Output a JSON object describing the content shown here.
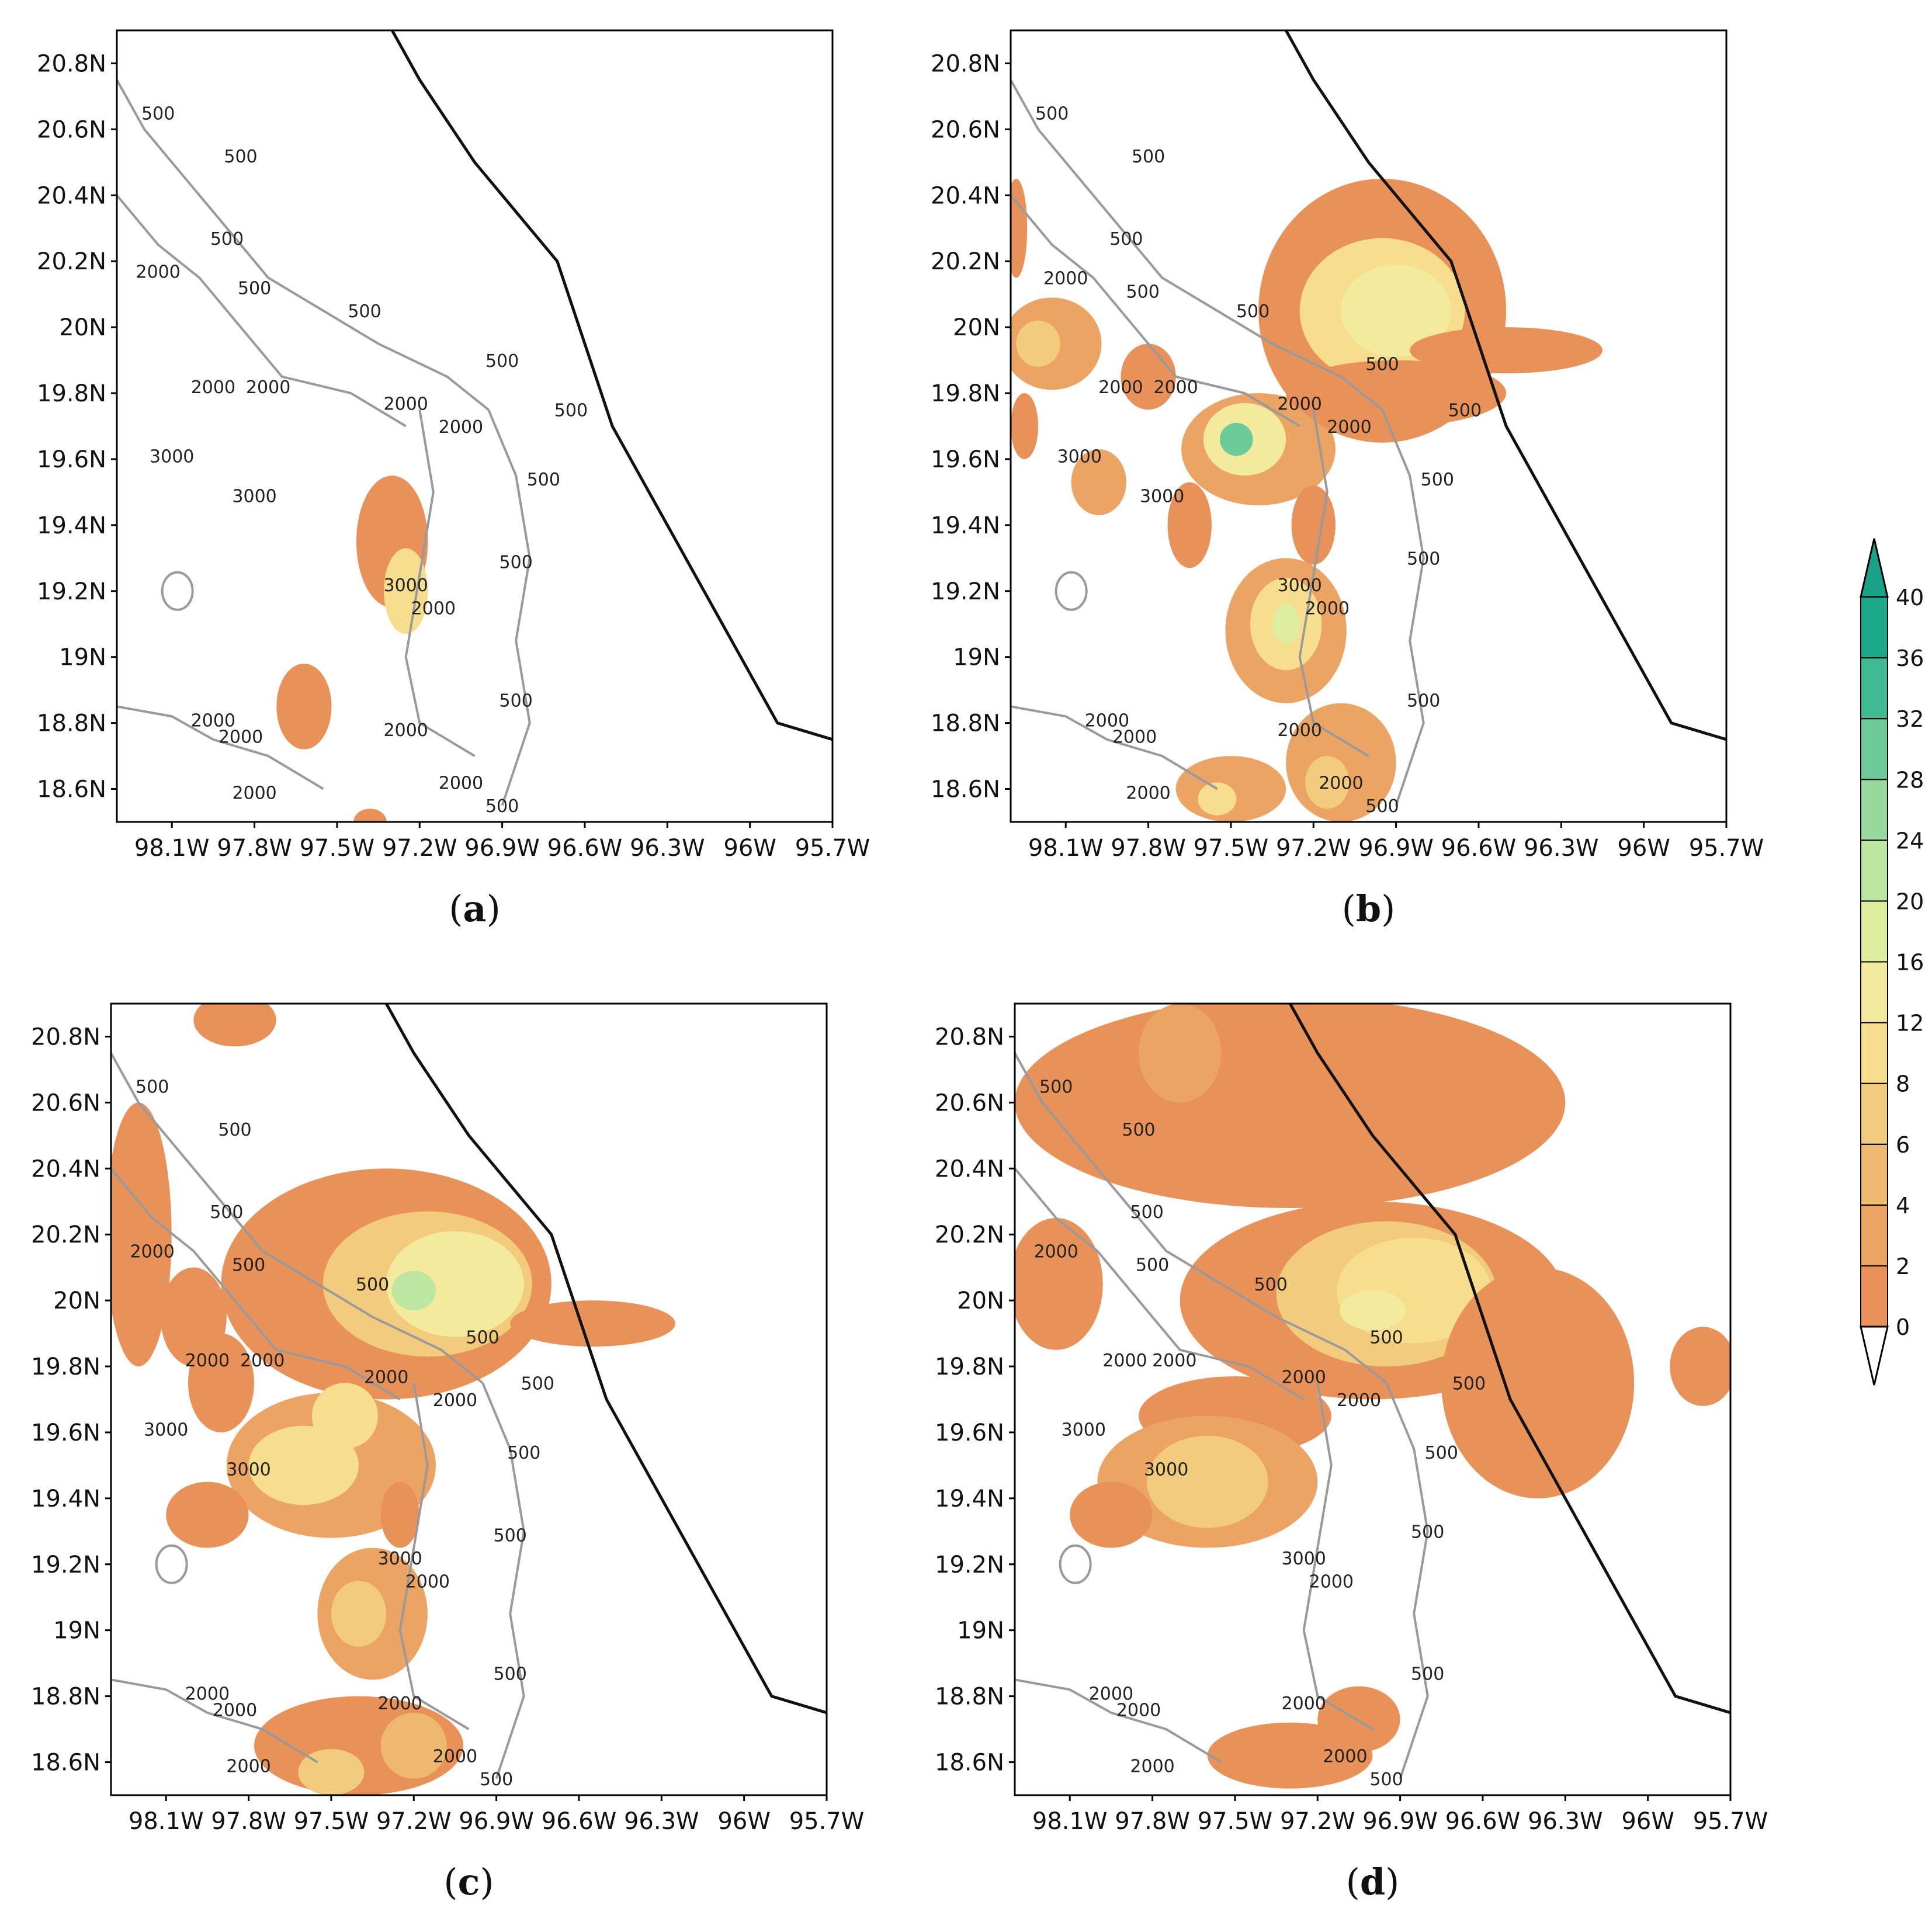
{
  "panels": [
    {
      "id": "a",
      "label": "(a)",
      "caption_letter": "a"
    },
    {
      "id": "b",
      "label": "(b)",
      "caption_letter": "b"
    },
    {
      "id": "c",
      "label": "(c)",
      "caption_letter": "c"
    },
    {
      "id": "d",
      "label": "(d)",
      "caption_letter": "d"
    }
  ],
  "lat_ticks": [
    "20.8N",
    "20.6N",
    "20.4N",
    "20.2N",
    "20N",
    "19.8N",
    "19.6N",
    "19.4N",
    "19.2N",
    "19N",
    "18.8N",
    "18.6N"
  ],
  "lon_ticks": [
    "98.1W",
    "97.8W",
    "97.5W",
    "97.2W",
    "96.9W",
    "96.6W",
    "96.3W",
    "96W",
    "95.7W"
  ],
  "map_extent": {
    "lon_min": -98.3,
    "lon_max": -95.7,
    "lat_min": 18.5,
    "lat_max": 20.9
  },
  "colorbar": {
    "levels": [
      "0",
      "2",
      "4",
      "6",
      "8",
      "12",
      "16",
      "20",
      "24",
      "28",
      "32",
      "36",
      "40"
    ],
    "colors": [
      "#e8925a",
      "#eba464",
      "#eeb86e",
      "#f2cb7c",
      "#f6de8e",
      "#f4ea9e",
      "#ddeea0",
      "#bde6a0",
      "#97d99c",
      "#6ccb98",
      "#3fba92",
      "#1ea88a"
    ],
    "under_color": "#ffffff",
    "over_color": "#18a386"
  },
  "colors": {
    "coast": "#111111",
    "contour": "#9a9a9a",
    "frame": "#000000"
  },
  "contour_labels": {
    "a": [
      {
        "t": "500",
        "lon": -98.15,
        "lat": 20.63
      },
      {
        "t": "500",
        "lon": -97.85,
        "lat": 20.5
      },
      {
        "t": "500",
        "lon": -97.9,
        "lat": 20.25
      },
      {
        "t": "2000",
        "lon": -98.15,
        "lat": 20.15
      },
      {
        "t": "500",
        "lon": -97.8,
        "lat": 20.1
      },
      {
        "t": "500",
        "lon": -97.4,
        "lat": 20.03
      },
      {
        "t": "500",
        "lon": -96.9,
        "lat": 19.88
      },
      {
        "t": "2000",
        "lon": -97.95,
        "lat": 19.8
      },
      {
        "t": "2000",
        "lon": -97.75,
        "lat": 19.8
      },
      {
        "t": "2000",
        "lon": -97.25,
        "lat": 19.75
      },
      {
        "t": "2000",
        "lon": -97.05,
        "lat": 19.68
      },
      {
        "t": "500",
        "lon": -96.65,
        "lat": 19.73
      },
      {
        "t": "3000",
        "lon": -98.1,
        "lat": 19.59
      },
      {
        "t": "3000",
        "lon": -97.8,
        "lat": 19.47
      },
      {
        "t": "500",
        "lon": -96.75,
        "lat": 19.52
      },
      {
        "t": "500",
        "lon": -96.85,
        "lat": 19.27
      },
      {
        "t": "3000",
        "lon": -97.25,
        "lat": 19.2
      },
      {
        "t": "2000",
        "lon": -97.15,
        "lat": 19.13
      },
      {
        "t": "500",
        "lon": -96.85,
        "lat": 18.85
      },
      {
        "t": "2000",
        "lon": -97.95,
        "lat": 18.79
      },
      {
        "t": "2000",
        "lon": -97.85,
        "lat": 18.74
      },
      {
        "t": "2000",
        "lon": -97.25,
        "lat": 18.76
      },
      {
        "t": "2000",
        "lon": -97.05,
        "lat": 18.6
      },
      {
        "t": "2000",
        "lon": -97.8,
        "lat": 18.57
      },
      {
        "t": "500",
        "lon": -96.9,
        "lat": 18.53
      }
    ],
    "b": [
      {
        "t": "500",
        "lon": -98.15,
        "lat": 20.63
      },
      {
        "t": "500",
        "lon": -97.8,
        "lat": 20.5
      },
      {
        "t": "500",
        "lon": -97.88,
        "lat": 20.25
      },
      {
        "t": "2000",
        "lon": -98.1,
        "lat": 20.13
      },
      {
        "t": "500",
        "lon": -97.82,
        "lat": 20.09
      },
      {
        "t": "500",
        "lon": -97.42,
        "lat": 20.03
      },
      {
        "t": "500",
        "lon": -96.95,
        "lat": 19.87
      },
      {
        "t": "2000",
        "lon": -97.9,
        "lat": 19.8
      },
      {
        "t": "2000",
        "lon": -97.7,
        "lat": 19.8
      },
      {
        "t": "2000",
        "lon": -97.25,
        "lat": 19.75
      },
      {
        "t": "2000",
        "lon": -97.07,
        "lat": 19.68
      },
      {
        "t": "500",
        "lon": -96.65,
        "lat": 19.73
      },
      {
        "t": "3000",
        "lon": -98.05,
        "lat": 19.59
      },
      {
        "t": "3000",
        "lon": -97.75,
        "lat": 19.47
      },
      {
        "t": "500",
        "lon": -96.75,
        "lat": 19.52
      },
      {
        "t": "500",
        "lon": -96.8,
        "lat": 19.28
      },
      {
        "t": "3000",
        "lon": -97.25,
        "lat": 19.2
      },
      {
        "t": "2000",
        "lon": -97.15,
        "lat": 19.13
      },
      {
        "t": "500",
        "lon": -96.8,
        "lat": 18.85
      },
      {
        "t": "2000",
        "lon": -97.95,
        "lat": 18.79
      },
      {
        "t": "2000",
        "lon": -97.85,
        "lat": 18.74
      },
      {
        "t": "2000",
        "lon": -97.25,
        "lat": 18.76
      },
      {
        "t": "2000",
        "lon": -97.1,
        "lat": 18.6
      },
      {
        "t": "2000",
        "lon": -97.8,
        "lat": 18.57
      },
      {
        "t": "500",
        "lon": -96.95,
        "lat": 18.53
      }
    ],
    "c": [
      {
        "t": "500",
        "lon": -98.15,
        "lat": 20.63
      },
      {
        "t": "500",
        "lon": -97.85,
        "lat": 20.5
      },
      {
        "t": "500",
        "lon": -97.88,
        "lat": 20.25
      },
      {
        "t": "2000",
        "lon": -98.15,
        "lat": 20.13
      },
      {
        "t": "500",
        "lon": -97.8,
        "lat": 20.09
      },
      {
        "t": "500",
        "lon": -97.35,
        "lat": 20.03
      },
      {
        "t": "500",
        "lon": -96.95,
        "lat": 19.87
      },
      {
        "t": "2000",
        "lon": -97.95,
        "lat": 19.8
      },
      {
        "t": "2000",
        "lon": -97.75,
        "lat": 19.8
      },
      {
        "t": "2000",
        "lon": -97.3,
        "lat": 19.75
      },
      {
        "t": "2000",
        "lon": -97.05,
        "lat": 19.68
      },
      {
        "t": "500",
        "lon": -96.75,
        "lat": 19.73
      },
      {
        "t": "3000",
        "lon": -98.1,
        "lat": 19.59
      },
      {
        "t": "3000",
        "lon": -97.8,
        "lat": 19.47
      },
      {
        "t": "500",
        "lon": -96.8,
        "lat": 19.52
      },
      {
        "t": "500",
        "lon": -96.85,
        "lat": 19.27
      },
      {
        "t": "3000",
        "lon": -97.25,
        "lat": 19.2
      },
      {
        "t": "2000",
        "lon": -97.15,
        "lat": 19.13
      },
      {
        "t": "500",
        "lon": -96.85,
        "lat": 18.85
      },
      {
        "t": "2000",
        "lon": -97.95,
        "lat": 18.79
      },
      {
        "t": "2000",
        "lon": -97.85,
        "lat": 18.74
      },
      {
        "t": "2000",
        "lon": -97.25,
        "lat": 18.76
      },
      {
        "t": "2000",
        "lon": -97.05,
        "lat": 18.6
      },
      {
        "t": "2000",
        "lon": -97.8,
        "lat": 18.57
      },
      {
        "t": "500",
        "lon": -96.9,
        "lat": 18.53
      }
    ],
    "d": [
      {
        "t": "500",
        "lon": -98.15,
        "lat": 20.63
      },
      {
        "t": "500",
        "lon": -97.85,
        "lat": 20.5
      },
      {
        "t": "500",
        "lon": -97.82,
        "lat": 20.25
      },
      {
        "t": "2000",
        "lon": -98.15,
        "lat": 20.13
      },
      {
        "t": "500",
        "lon": -97.8,
        "lat": 20.09
      },
      {
        "t": "500",
        "lon": -97.37,
        "lat": 20.03
      },
      {
        "t": "500",
        "lon": -96.95,
        "lat": 19.87
      },
      {
        "t": "2000",
        "lon": -97.9,
        "lat": 19.8
      },
      {
        "t": "2000",
        "lon": -97.72,
        "lat": 19.8
      },
      {
        "t": "2000",
        "lon": -97.25,
        "lat": 19.75
      },
      {
        "t": "2000",
        "lon": -97.05,
        "lat": 19.68
      },
      {
        "t": "500",
        "lon": -96.65,
        "lat": 19.73
      },
      {
        "t": "3000",
        "lon": -98.05,
        "lat": 19.59
      },
      {
        "t": "3000",
        "lon": -97.75,
        "lat": 19.47
      },
      {
        "t": "500",
        "lon": -96.75,
        "lat": 19.52
      },
      {
        "t": "500",
        "lon": -96.8,
        "lat": 19.28
      },
      {
        "t": "3000",
        "lon": -97.25,
        "lat": 19.2
      },
      {
        "t": "2000",
        "lon": -97.15,
        "lat": 19.13
      },
      {
        "t": "500",
        "lon": -96.8,
        "lat": 18.85
      },
      {
        "t": "2000",
        "lon": -97.95,
        "lat": 18.79
      },
      {
        "t": "2000",
        "lon": -97.85,
        "lat": 18.74
      },
      {
        "t": "2000",
        "lon": -97.25,
        "lat": 18.76
      },
      {
        "t": "2000",
        "lon": -97.1,
        "lat": 18.6
      },
      {
        "t": "2000",
        "lon": -97.8,
        "lat": 18.57
      },
      {
        "t": "500",
        "lon": -96.95,
        "lat": 18.53
      }
    ]
  },
  "coastline": [
    [
      -97.3,
      20.9
    ],
    [
      -97.2,
      20.75
    ],
    [
      -97.0,
      20.5
    ],
    [
      -96.7,
      20.2
    ],
    [
      -96.5,
      19.7
    ],
    [
      -96.2,
      19.25
    ],
    [
      -95.9,
      18.8
    ],
    [
      -95.7,
      18.75
    ]
  ],
  "shaded": {
    "a": [
      {
        "lon": -97.3,
        "lat": 19.35,
        "rx": 0.13,
        "ry": 0.2,
        "v": 1
      },
      {
        "lon": -97.25,
        "lat": 19.2,
        "rx": 0.08,
        "ry": 0.13,
        "v": 10
      },
      {
        "lon": -97.62,
        "lat": 18.85,
        "rx": 0.1,
        "ry": 0.13,
        "v": 1
      },
      {
        "lon": -97.38,
        "lat": 18.5,
        "rx": 0.06,
        "ry": 0.04,
        "v": 1
      }
    ],
    "b": [
      {
        "lon": -98.28,
        "lat": 20.3,
        "rx": 0.04,
        "ry": 0.15,
        "v": 1
      },
      {
        "lon": -98.15,
        "lat": 19.95,
        "rx": 0.18,
        "ry": 0.14,
        "v": 2
      },
      {
        "lon": -98.2,
        "lat": 19.95,
        "rx": 0.08,
        "ry": 0.07,
        "v": 6
      },
      {
        "lon": -97.8,
        "lat": 19.85,
        "rx": 0.1,
        "ry": 0.1,
        "v": 1
      },
      {
        "lon": -98.25,
        "lat": 19.7,
        "rx": 0.05,
        "ry": 0.1,
        "v": 1
      },
      {
        "lon": -97.98,
        "lat": 19.53,
        "rx": 0.1,
        "ry": 0.1,
        "v": 3
      },
      {
        "lon": -97.65,
        "lat": 19.4,
        "rx": 0.08,
        "ry": 0.13,
        "v": 1
      },
      {
        "lon": -97.4,
        "lat": 19.63,
        "rx": 0.28,
        "ry": 0.17,
        "v": 3
      },
      {
        "lon": -97.45,
        "lat": 19.66,
        "rx": 0.15,
        "ry": 0.11,
        "v": 14
      },
      {
        "lon": -97.48,
        "lat": 19.66,
        "rx": 0.06,
        "ry": 0.05,
        "v": 30
      },
      {
        "lon": -96.95,
        "lat": 20.05,
        "rx": 0.45,
        "ry": 0.4,
        "v": 1
      },
      {
        "lon": -96.95,
        "lat": 20.05,
        "rx": 0.3,
        "ry": 0.22,
        "v": 8
      },
      {
        "lon": -96.9,
        "lat": 20.05,
        "rx": 0.2,
        "ry": 0.14,
        "v": 12
      },
      {
        "lon": -96.5,
        "lat": 19.93,
        "rx": 0.35,
        "ry": 0.07,
        "v": 1
      },
      {
        "lon": -96.9,
        "lat": 19.8,
        "rx": 0.4,
        "ry": 0.1,
        "v": 1
      },
      {
        "lon": -97.2,
        "lat": 19.4,
        "rx": 0.08,
        "ry": 0.12,
        "v": 1
      },
      {
        "lon": -97.3,
        "lat": 19.08,
        "rx": 0.22,
        "ry": 0.22,
        "v": 2
      },
      {
        "lon": -97.3,
        "lat": 19.1,
        "rx": 0.13,
        "ry": 0.14,
        "v": 10
      },
      {
        "lon": -97.3,
        "lat": 19.1,
        "rx": 0.05,
        "ry": 0.06,
        "v": 16
      },
      {
        "lon": -97.5,
        "lat": 18.6,
        "rx": 0.2,
        "ry": 0.1,
        "v": 3
      },
      {
        "lon": -97.1,
        "lat": 18.68,
        "rx": 0.2,
        "ry": 0.18,
        "v": 2
      },
      {
        "lon": -97.15,
        "lat": 18.62,
        "rx": 0.08,
        "ry": 0.08,
        "v": 7
      },
      {
        "lon": -97.55,
        "lat": 18.57,
        "rx": 0.07,
        "ry": 0.05,
        "v": 10
      }
    ],
    "c": [
      {
        "lon": -97.85,
        "lat": 20.85,
        "rx": 0.15,
        "ry": 0.08,
        "v": 1
      },
      {
        "lon": -98.2,
        "lat": 20.2,
        "rx": 0.12,
        "ry": 0.4,
        "v": 1
      },
      {
        "lon": -98.0,
        "lat": 19.95,
        "rx": 0.12,
        "ry": 0.15,
        "v": 1
      },
      {
        "lon": -97.9,
        "lat": 19.75,
        "rx": 0.12,
        "ry": 0.15,
        "v": 1
      },
      {
        "lon": -97.3,
        "lat": 20.05,
        "rx": 0.6,
        "ry": 0.35,
        "v": 1
      },
      {
        "lon": -97.15,
        "lat": 20.05,
        "rx": 0.38,
        "ry": 0.22,
        "v": 6
      },
      {
        "lon": -97.05,
        "lat": 20.05,
        "rx": 0.25,
        "ry": 0.16,
        "v": 12
      },
      {
        "lon": -97.2,
        "lat": 20.03,
        "rx": 0.08,
        "ry": 0.06,
        "v": 20
      },
      {
        "lon": -96.55,
        "lat": 19.93,
        "rx": 0.3,
        "ry": 0.07,
        "v": 1
      },
      {
        "lon": -97.5,
        "lat": 19.5,
        "rx": 0.38,
        "ry": 0.22,
        "v": 2
      },
      {
        "lon": -97.6,
        "lat": 19.5,
        "rx": 0.2,
        "ry": 0.12,
        "v": 8
      },
      {
        "lon": -97.45,
        "lat": 19.65,
        "rx": 0.12,
        "ry": 0.1,
        "v": 10
      },
      {
        "lon": -97.95,
        "lat": 19.35,
        "rx": 0.15,
        "ry": 0.1,
        "v": 1
      },
      {
        "lon": -97.25,
        "lat": 19.35,
        "rx": 0.07,
        "ry": 0.1,
        "v": 1
      },
      {
        "lon": -97.35,
        "lat": 19.05,
        "rx": 0.2,
        "ry": 0.2,
        "v": 2
      },
      {
        "lon": -97.4,
        "lat": 19.05,
        "rx": 0.1,
        "ry": 0.1,
        "v": 7
      },
      {
        "lon": -97.4,
        "lat": 18.65,
        "rx": 0.38,
        "ry": 0.15,
        "v": 1
      },
      {
        "lon": -97.5,
        "lat": 18.57,
        "rx": 0.12,
        "ry": 0.07,
        "v": 6
      },
      {
        "lon": -97.2,
        "lat": 18.65,
        "rx": 0.12,
        "ry": 0.1,
        "v": 4
      }
    ],
    "d": [
      {
        "lon": -97.3,
        "lat": 20.6,
        "rx": 1.0,
        "ry": 0.32,
        "v": 1
      },
      {
        "lon": -98.15,
        "lat": 20.05,
        "rx": 0.17,
        "ry": 0.2,
        "v": 1
      },
      {
        "lon": -97.7,
        "lat": 20.75,
        "rx": 0.15,
        "ry": 0.15,
        "v": 2
      },
      {
        "lon": -97.0,
        "lat": 20.0,
        "rx": 0.7,
        "ry": 0.3,
        "v": 1
      },
      {
        "lon": -96.95,
        "lat": 20.02,
        "rx": 0.4,
        "ry": 0.22,
        "v": 6
      },
      {
        "lon": -96.85,
        "lat": 20.03,
        "rx": 0.28,
        "ry": 0.16,
        "v": 10
      },
      {
        "lon": -97.0,
        "lat": 19.97,
        "rx": 0.12,
        "ry": 0.06,
        "v": 14
      },
      {
        "lon": -96.4,
        "lat": 19.75,
        "rx": 0.35,
        "ry": 0.35,
        "v": 1
      },
      {
        "lon": -95.8,
        "lat": 19.8,
        "rx": 0.12,
        "ry": 0.12,
        "v": 1
      },
      {
        "lon": -97.5,
        "lat": 19.65,
        "rx": 0.35,
        "ry": 0.12,
        "v": 1
      },
      {
        "lon": -97.6,
        "lat": 19.45,
        "rx": 0.4,
        "ry": 0.2,
        "v": 2
      },
      {
        "lon": -97.6,
        "lat": 19.45,
        "rx": 0.22,
        "ry": 0.14,
        "v": 7
      },
      {
        "lon": -97.95,
        "lat": 19.35,
        "rx": 0.15,
        "ry": 0.1,
        "v": 1
      },
      {
        "lon": -97.3,
        "lat": 18.62,
        "rx": 0.3,
        "ry": 0.1,
        "v": 1
      },
      {
        "lon": -97.05,
        "lat": 18.73,
        "rx": 0.15,
        "ry": 0.1,
        "v": 1
      }
    ]
  }
}
